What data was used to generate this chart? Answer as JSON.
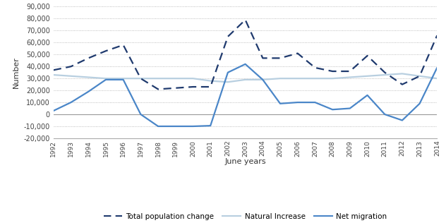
{
  "years": [
    1992,
    1993,
    1994,
    1995,
    1996,
    1997,
    1998,
    1999,
    2000,
    2001,
    2002,
    2003,
    2004,
    2005,
    2006,
    2007,
    2008,
    2009,
    2010,
    2011,
    2012,
    2013,
    2014
  ],
  "total_pop_change": [
    37000,
    40000,
    47000,
    53000,
    58000,
    30000,
    21000,
    22000,
    23000,
    23000,
    65000,
    79000,
    47000,
    47000,
    51000,
    39000,
    36000,
    36000,
    49000,
    35000,
    25000,
    32000,
    66000
  ],
  "natural_increase": [
    33000,
    32000,
    31000,
    30000,
    30000,
    30000,
    30000,
    30000,
    30000,
    28000,
    27000,
    29000,
    29000,
    30000,
    30000,
    30000,
    30000,
    31000,
    32000,
    33000,
    34000,
    32000,
    30000
  ],
  "net_migration": [
    3000,
    10000,
    19000,
    29000,
    29000,
    0,
    -10000,
    -10000,
    -10000,
    -9500,
    35000,
    42000,
    29000,
    9000,
    10000,
    10000,
    4000,
    5000,
    16000,
    0,
    -5000,
    9000,
    39000
  ],
  "total_color": "#1f3a6e",
  "natural_color": "#b8cfe0",
  "net_color": "#4a86c8",
  "xlabel": "June years",
  "ylabel": "Number",
  "ylim_min": -20000,
  "ylim_max": 90000,
  "yticks": [
    -20000,
    -10000,
    0,
    10000,
    20000,
    30000,
    40000,
    50000,
    60000,
    70000,
    80000,
    90000
  ],
  "legend_labels": [
    "Total population change",
    "Natural Increase",
    "Net migration"
  ]
}
